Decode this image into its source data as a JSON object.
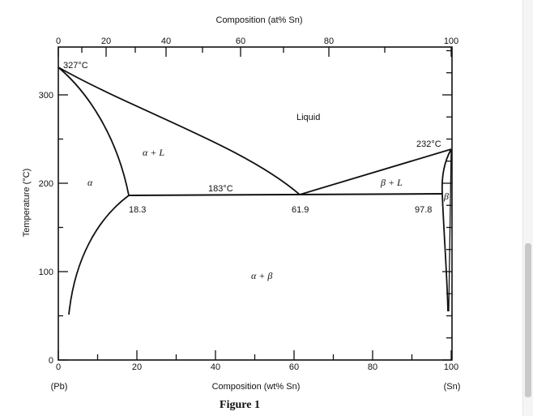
{
  "diagram": {
    "top_axis": {
      "title": "Composition (at% Sn)",
      "ticks": [
        "0",
        "20",
        "40",
        "60",
        "80",
        "100"
      ]
    },
    "bottom_axis": {
      "title": "Composition (wt% Sn)",
      "ticks": [
        "0",
        "20",
        "40",
        "60",
        "80",
        "100"
      ],
      "left_end": "(Pb)",
      "right_end": "(Sn)"
    },
    "y_axis": {
      "title": "Temperature (°C)",
      "ticks": [
        "0",
        "100",
        "200",
        "300"
      ]
    },
    "labels": {
      "pb_melting": "327°C",
      "sn_melting": "232°C",
      "eutectic": "183°C",
      "alpha_solvus": "18.3",
      "eutectic_comp": "61.9",
      "beta_solvus": "97.8"
    },
    "phases": {
      "liquid": "Liquid",
      "alpha_l": "α + L",
      "alpha": "α",
      "beta_l": "β + L",
      "beta": "β",
      "alpha_beta": "α + β"
    },
    "caption": "Figure 1"
  }
}
